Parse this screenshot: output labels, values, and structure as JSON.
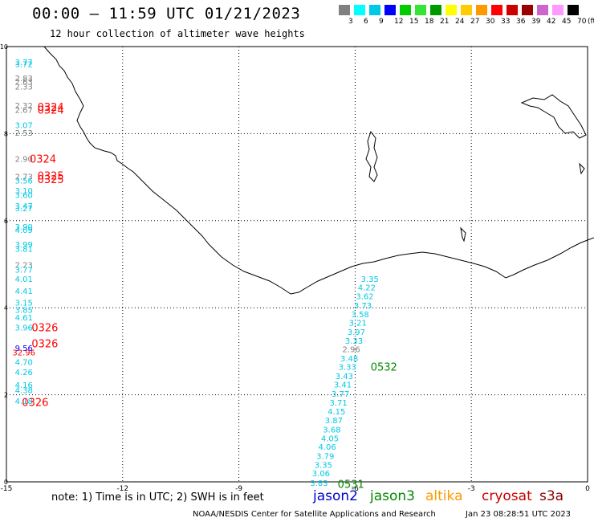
{
  "header": {
    "title": "00:00 – 11:59 UTC 01/21/2023",
    "subtitle": "12 hour collection of altimeter wave heights"
  },
  "colorbar": {
    "unit": "(ft)",
    "labels": [
      "3",
      "6",
      "9",
      "12",
      "15",
      "18",
      "21",
      "24",
      "27",
      "30",
      "33",
      "36",
      "39",
      "42",
      "45",
      "70"
    ],
    "colors": [
      "#808080",
      "#00ffff",
      "#00c8e6",
      "#0000ff",
      "#00cc00",
      "#33e633",
      "#009900",
      "#ffff00",
      "#ffcc00",
      "#ff9900",
      "#ff0000",
      "#cc0000",
      "#990000",
      "#cc66cc",
      "#ff99ff",
      "#000000"
    ]
  },
  "axes": {
    "x_ticks": [
      "-15",
      "-12",
      "-9",
      "-6",
      "-3",
      "0"
    ],
    "y_ticks": [
      "0",
      "2",
      "4",
      "6",
      "8",
      "10"
    ],
    "x_values": [
      -15,
      -12,
      -9,
      -6,
      -3,
      0
    ],
    "y_values": [
      0,
      2,
      4,
      6,
      8,
      10
    ]
  },
  "observations": [
    {
      "x": -14.55,
      "y": 9.65,
      "text": "3.77",
      "color": "#00c8e6"
    },
    {
      "x": -14.55,
      "y": 9.6,
      "text": "3.72",
      "color": "#00c8e6"
    },
    {
      "x": -14.55,
      "y": 9.28,
      "text": "2.83",
      "color": "#808080"
    },
    {
      "x": -14.55,
      "y": 9.2,
      "text": "2.63",
      "color": "#808080"
    },
    {
      "x": -14.55,
      "y": 9.09,
      "text": "2.33",
      "color": "#808080"
    },
    {
      "x": -14.55,
      "y": 8.65,
      "text": "2.32",
      "color": "#808080"
    },
    {
      "x": -14.55,
      "y": 8.55,
      "text": "2.67",
      "color": "#808080"
    },
    {
      "x": -14.55,
      "y": 8.2,
      "text": "3.07",
      "color": "#00c8e6"
    },
    {
      "x": -14.55,
      "y": 8.03,
      "text": "2.53",
      "color": "#808080"
    },
    {
      "x": -14.55,
      "y": 7.43,
      "text": "2.90",
      "color": "#808080"
    },
    {
      "x": -14.55,
      "y": 7.02,
      "text": "2.73",
      "color": "#808080"
    },
    {
      "x": -14.55,
      "y": 6.93,
      "text": "3.56",
      "color": "#00c8e6"
    },
    {
      "x": -14.55,
      "y": 6.7,
      "text": "3.10",
      "color": "#00c8e6"
    },
    {
      "x": -14.55,
      "y": 6.6,
      "text": "3.60",
      "color": "#00c8e6"
    },
    {
      "x": -14.55,
      "y": 6.35,
      "text": "3.47",
      "color": "#00c8e6"
    },
    {
      "x": -14.55,
      "y": 6.29,
      "text": "3.27",
      "color": "#00c8e6"
    },
    {
      "x": -14.55,
      "y": 5.87,
      "text": "3.90",
      "color": "#00c8e6"
    },
    {
      "x": -14.55,
      "y": 5.79,
      "text": "4.09",
      "color": "#00c8e6"
    },
    {
      "x": -14.55,
      "y": 5.46,
      "text": "3.99",
      "color": "#00c8e6"
    },
    {
      "x": -14.55,
      "y": 5.36,
      "text": "3.81",
      "color": "#00c8e6"
    },
    {
      "x": -14.55,
      "y": 4.99,
      "text": "2.23",
      "color": "#808080"
    },
    {
      "x": -14.55,
      "y": 4.88,
      "text": "3.77",
      "color": "#00c8e6"
    },
    {
      "x": -14.55,
      "y": 4.67,
      "text": "4.01",
      "color": "#00c8e6"
    },
    {
      "x": -14.55,
      "y": 4.39,
      "text": "4.41",
      "color": "#00c8e6"
    },
    {
      "x": -14.55,
      "y": 4.12,
      "text": "3.15",
      "color": "#00c8e6"
    },
    {
      "x": -14.55,
      "y": 3.96,
      "text": "3.85",
      "color": "#00c8e6"
    },
    {
      "x": -14.55,
      "y": 3.78,
      "text": "4.61",
      "color": "#00c8e6"
    },
    {
      "x": -14.55,
      "y": 3.55,
      "text": "3.96",
      "color": "#00c8e6"
    },
    {
      "x": -14.55,
      "y": 3.08,
      "text": "9.56",
      "color": "#0000ff"
    },
    {
      "x": -14.55,
      "y": 2.98,
      "text": "32.96",
      "color": "#ff0000"
    },
    {
      "x": -14.55,
      "y": 2.76,
      "text": "4.70",
      "color": "#00c8e6"
    },
    {
      "x": -14.55,
      "y": 2.53,
      "text": "4.26",
      "color": "#00c8e6"
    },
    {
      "x": -14.55,
      "y": 2.23,
      "text": "4.16",
      "color": "#00c8e6"
    },
    {
      "x": -14.55,
      "y": 2.11,
      "text": "4.38",
      "color": "#00c8e6"
    },
    {
      "x": -14.55,
      "y": 1.86,
      "text": "4.18",
      "color": "#00c8e6"
    },
    {
      "x": -5.62,
      "y": 4.67,
      "text": "3.35",
      "color": "#00c8e6"
    },
    {
      "x": -5.7,
      "y": 4.47,
      "text": "4.22",
      "color": "#00c8e6"
    },
    {
      "x": -5.75,
      "y": 4.27,
      "text": "3.62",
      "color": "#00c8e6"
    },
    {
      "x": -5.8,
      "y": 4.06,
      "text": "3.73",
      "color": "#00c8e6"
    },
    {
      "x": -5.87,
      "y": 3.86,
      "text": "3.58",
      "color": "#00c8e6"
    },
    {
      "x": -5.93,
      "y": 3.66,
      "text": "3.21",
      "color": "#00c8e6"
    },
    {
      "x": -5.97,
      "y": 3.45,
      "text": "3.97",
      "color": "#00c8e6"
    },
    {
      "x": -6.03,
      "y": 3.25,
      "text": "3.33",
      "color": "#00c8e6"
    },
    {
      "x": -6.1,
      "y": 3.05,
      "text": "2.96",
      "color": "#808080"
    },
    {
      "x": -6.15,
      "y": 2.84,
      "text": "3.48",
      "color": "#00c8e6"
    },
    {
      "x": -6.2,
      "y": 2.65,
      "text": "3.33",
      "color": "#00c8e6"
    },
    {
      "x": -6.28,
      "y": 2.44,
      "text": "3.43",
      "color": "#00c8e6"
    },
    {
      "x": -6.32,
      "y": 2.24,
      "text": "3.41",
      "color": "#00c8e6"
    },
    {
      "x": -6.38,
      "y": 2.03,
      "text": "3.77",
      "color": "#00c8e6"
    },
    {
      "x": -6.43,
      "y": 1.83,
      "text": "3.71",
      "color": "#00c8e6"
    },
    {
      "x": -6.48,
      "y": 1.62,
      "text": "4.15",
      "color": "#00c8e6"
    },
    {
      "x": -6.55,
      "y": 1.42,
      "text": "3.87",
      "color": "#00c8e6"
    },
    {
      "x": -6.6,
      "y": 1.21,
      "text": "3.68",
      "color": "#00c8e6"
    },
    {
      "x": -6.65,
      "y": 1.01,
      "text": "4.05",
      "color": "#00c8e6"
    },
    {
      "x": -6.72,
      "y": 0.81,
      "text": "4.06",
      "color": "#00c8e6"
    },
    {
      "x": -6.77,
      "y": 0.6,
      "text": "3.79",
      "color": "#00c8e6"
    },
    {
      "x": -6.82,
      "y": 0.4,
      "text": "3.35",
      "color": "#00c8e6"
    },
    {
      "x": -6.88,
      "y": 0.2,
      "text": "3.06",
      "color": "#00c8e6"
    },
    {
      "x": -6.93,
      "y": -0.02,
      "text": "3.83",
      "color": "#00c8e6"
    }
  ],
  "pass_times": [
    {
      "x": -14.2,
      "y": 8.62,
      "text": "0324",
      "color": "#ff0000"
    },
    {
      "x": -14.2,
      "y": 8.55,
      "text": "0324",
      "color": "#ff0000"
    },
    {
      "x": -14.4,
      "y": 7.43,
      "text": "0324",
      "color": "#ff0000"
    },
    {
      "x": -14.2,
      "y": 7.04,
      "text": "0325",
      "color": "#ff0000"
    },
    {
      "x": -14.2,
      "y": 6.96,
      "text": "0325",
      "color": "#ff0000"
    },
    {
      "x": -14.35,
      "y": 3.55,
      "text": "0326",
      "color": "#ff0000"
    },
    {
      "x": -14.35,
      "y": 3.18,
      "text": "0326",
      "color": "#ff0000"
    },
    {
      "x": -14.6,
      "y": 1.84,
      "text": "0326",
      "color": "#ff0000"
    },
    {
      "x": -5.6,
      "y": 2.65,
      "text": "0532",
      "color": "#008800"
    },
    {
      "x": -6.45,
      "y": -0.05,
      "text": "0531",
      "color": "#008800"
    }
  ],
  "footer": {
    "note": "note:  1) Time is in UTC; 2) SWH is in feet",
    "satellites": [
      {
        "name": "jason2",
        "color": "#0000cc"
      },
      {
        "name": "jason3",
        "color": "#008800"
      },
      {
        "name": "altika",
        "color": "#ff9900"
      },
      {
        "name": "cryosat",
        "color": "#cc0000"
      },
      {
        "name": "s3a",
        "color": "#880000"
      }
    ],
    "credit": "NOAA/NESDIS Center for Satellite Applications and Research",
    "timestamp": "Jan 23 08:28:51 UTC 2023"
  }
}
